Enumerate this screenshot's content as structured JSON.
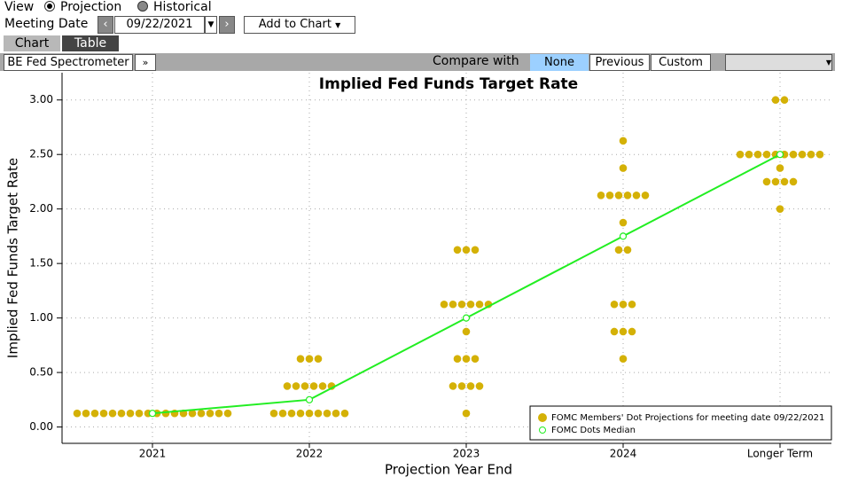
{
  "ui": {
    "view_label": "View",
    "view_options": [
      "Projection",
      "Historical"
    ],
    "meeting_date_label": "Meeting Date",
    "meeting_date": "09/22/2021",
    "add_to_chart": "Add to Chart",
    "tabs": [
      "Chart",
      "Table"
    ],
    "source": "BE Fed Spectrometer",
    "compare_label": "Compare with",
    "compare_options": [
      "None",
      "Previous",
      "Custom"
    ]
  },
  "chart_data": {
    "type": "dot",
    "title": "Implied Fed Funds Target Rate",
    "y_label": "Implied Fed Funds Target Rate",
    "x_label": "Projection Year End",
    "categories": [
      "2021",
      "2022",
      "2023",
      "2024",
      "Longer Term"
    ],
    "ylim": [
      -0.15,
      3.25
    ],
    "yticks": [
      {
        "value": 0,
        "label": "0.00"
      },
      {
        "value": 0.5,
        "label": "0.50"
      },
      {
        "value": 1,
        "label": "1.00"
      },
      {
        "value": 1.5,
        "label": "1.50"
      },
      {
        "value": 2,
        "label": "2.00"
      },
      {
        "value": 2.5,
        "label": "2.50"
      },
      {
        "value": 3,
        "label": "3.00"
      }
    ],
    "grid": true,
    "legend": "lower right",
    "series": [
      {
        "name": "FOMC Members' Dot Projections for meeting date 09/22/2021",
        "color": "#d4b106",
        "values": [
          [
            0.125,
            0.125,
            0.125,
            0.125,
            0.125,
            0.125,
            0.125,
            0.125,
            0.125,
            0.125,
            0.125,
            0.125,
            0.125,
            0.125,
            0.125,
            0.125,
            0.125,
            0.125
          ],
          [
            0.125,
            0.125,
            0.125,
            0.125,
            0.125,
            0.125,
            0.125,
            0.125,
            0.125,
            0.375,
            0.375,
            0.375,
            0.375,
            0.375,
            0.375,
            0.625,
            0.625,
            0.625
          ],
          [
            0.125,
            0.375,
            0.375,
            0.375,
            0.375,
            0.625,
            0.625,
            0.625,
            0.875,
            1.125,
            1.125,
            1.125,
            1.125,
            1.125,
            1.125,
            1.625,
            1.625,
            1.625
          ],
          [
            0.625,
            0.875,
            0.875,
            0.875,
            1.125,
            1.125,
            1.125,
            1.625,
            1.625,
            1.875,
            2.125,
            2.125,
            2.125,
            2.125,
            2.125,
            2.125,
            2.375,
            2.625
          ],
          [
            2.0,
            2.25,
            2.25,
            2.25,
            2.25,
            2.375,
            2.5,
            2.5,
            2.5,
            2.5,
            2.5,
            2.5,
            2.5,
            2.5,
            2.5,
            2.5,
            3.0,
            3.0
          ]
        ]
      },
      {
        "name": "FOMC Dots Median",
        "color": "#22ee22",
        "values": [
          0.125,
          0.25,
          1.0,
          1.75,
          2.5
        ]
      }
    ]
  }
}
